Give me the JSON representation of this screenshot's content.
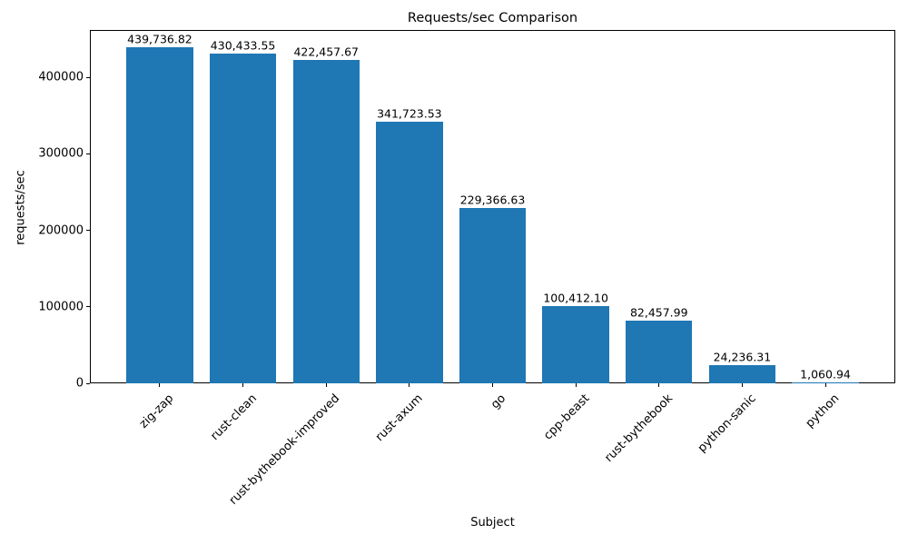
{
  "chart_data": {
    "type": "bar",
    "title": "Requests/sec Comparison",
    "xlabel": "Subject",
    "ylabel": "requests/sec",
    "categories": [
      "zig-zap",
      "rust-clean",
      "rust-bythebook-improved",
      "rust-axum",
      "go",
      "cpp-beast",
      "rust-bythebook",
      "python-sanic",
      "python"
    ],
    "values": [
      439736.82,
      430433.55,
      422457.67,
      341723.53,
      229366.63,
      100412.1,
      82457.99,
      24236.31,
      1060.94
    ],
    "value_labels": [
      "439,736.82",
      "430,433.55",
      "422,457.67",
      "341,723.53",
      "229,366.63",
      "100,412.10",
      "82,457.99",
      "24,236.31",
      "1,060.94"
    ],
    "yticks": [
      0,
      100000,
      200000,
      300000,
      400000
    ],
    "ytick_labels": [
      "0",
      "100000",
      "200000",
      "300000",
      "400000"
    ],
    "ylim": [
      0,
      461723.66
    ],
    "bar_color": "#1f77b4",
    "bar_width_frac": 0.8,
    "grid": false,
    "legend": "none",
    "text_color": "#000000"
  }
}
